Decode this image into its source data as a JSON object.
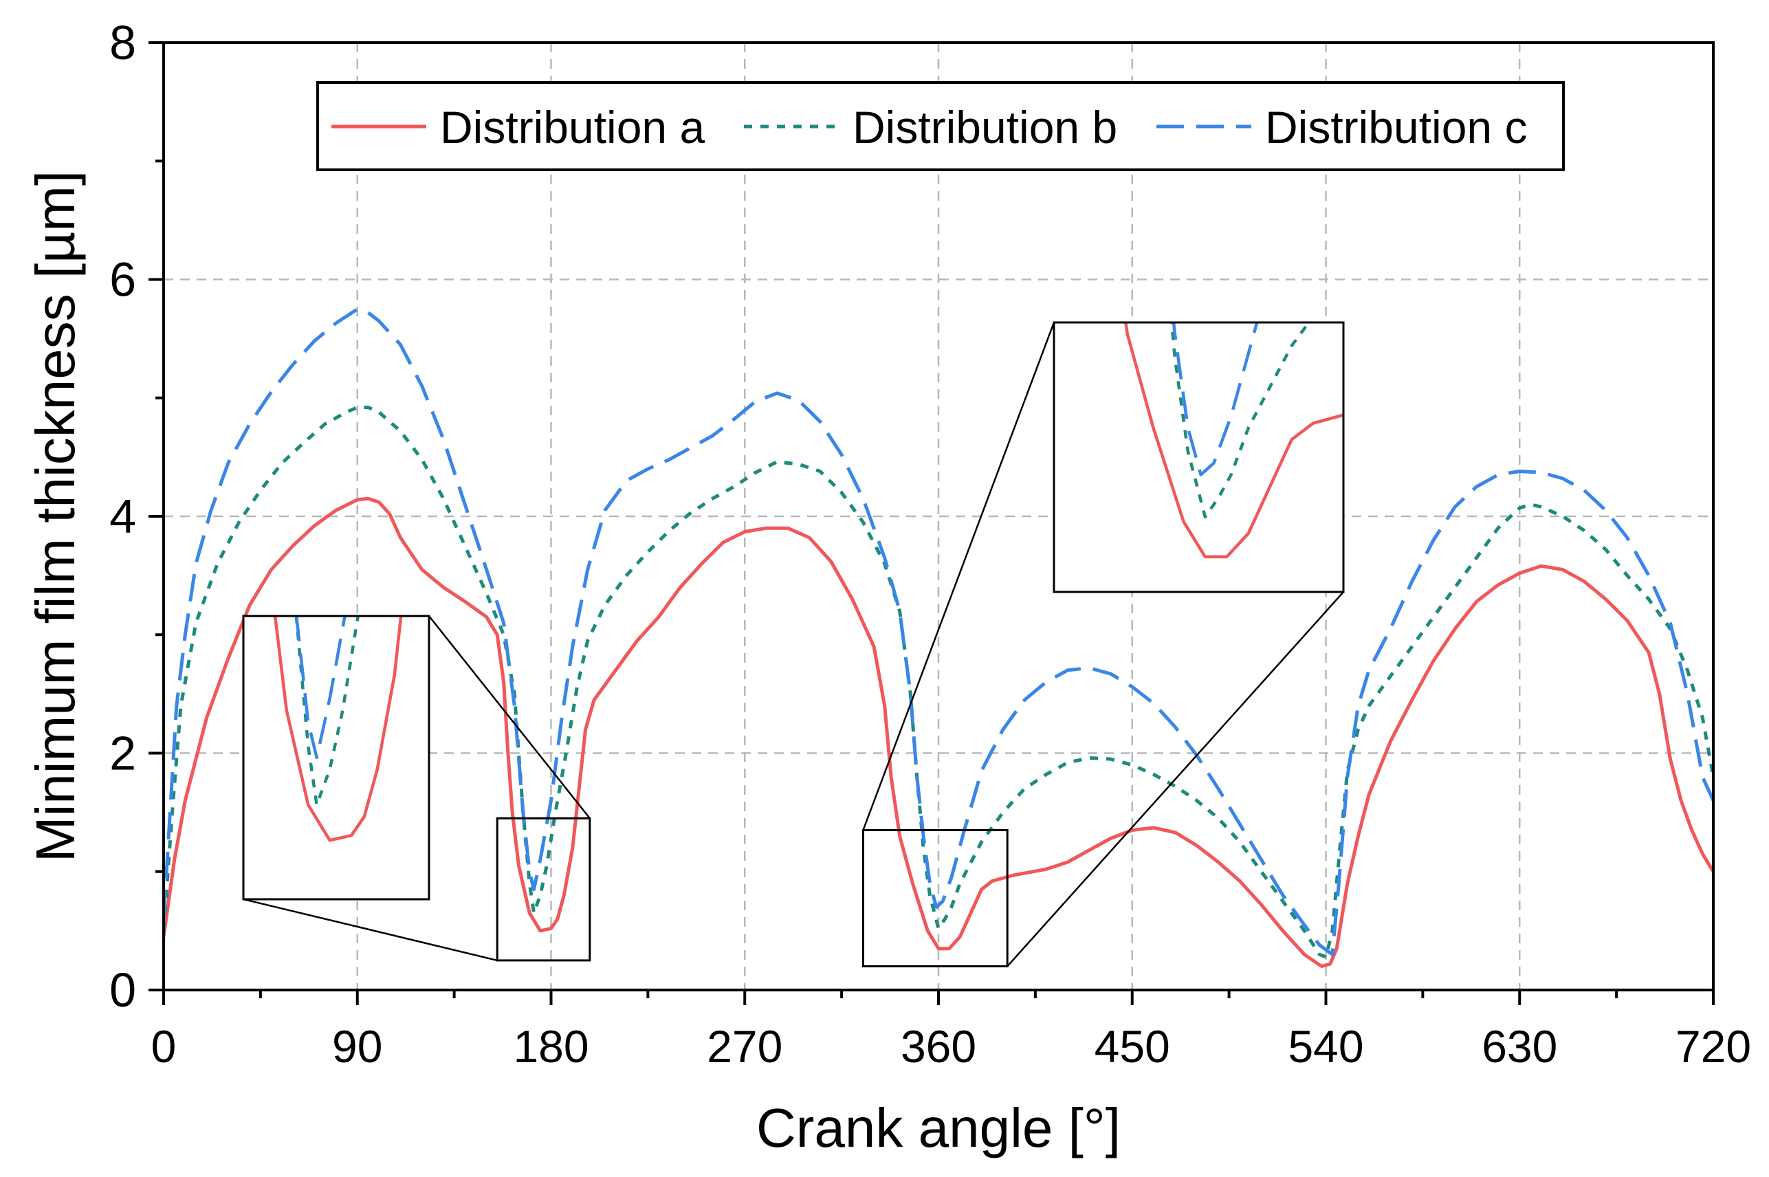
{
  "chart_data": {
    "type": "line",
    "title": "",
    "xlabel": "Crank angle [°]",
    "ylabel": "Minimum film thickness [µm]",
    "xlim": [
      0,
      720
    ],
    "ylim": [
      0,
      8
    ],
    "xticks": [
      0,
      90,
      180,
      270,
      360,
      450,
      540,
      630,
      720
    ],
    "yticks": [
      0,
      2,
      4,
      6,
      8
    ],
    "x_minor_step": 45,
    "y_minor_step": 1,
    "grid": true,
    "legend_position": "top-center",
    "series": [
      {
        "name": "Distribution a",
        "color": "#f0585a",
        "dash": "solid",
        "points": [
          [
            0,
            0.45
          ],
          [
            5,
            1.1
          ],
          [
            10,
            1.6
          ],
          [
            20,
            2.3
          ],
          [
            30,
            2.8
          ],
          [
            40,
            3.25
          ],
          [
            50,
            3.55
          ],
          [
            60,
            3.75
          ],
          [
            70,
            3.92
          ],
          [
            80,
            4.05
          ],
          [
            90,
            4.14
          ],
          [
            95,
            4.15
          ],
          [
            100,
            4.12
          ],
          [
            105,
            4.02
          ],
          [
            110,
            3.82
          ],
          [
            120,
            3.55
          ],
          [
            130,
            3.4
          ],
          [
            140,
            3.28
          ],
          [
            150,
            3.15
          ],
          [
            155,
            3.0
          ],
          [
            158,
            2.6
          ],
          [
            160,
            2.0
          ],
          [
            162,
            1.5
          ],
          [
            165,
            1.05
          ],
          [
            170,
            0.65
          ],
          [
            175,
            0.5
          ],
          [
            180,
            0.52
          ],
          [
            183,
            0.6
          ],
          [
            186,
            0.8
          ],
          [
            190,
            1.2
          ],
          [
            193,
            1.7
          ],
          [
            196,
            2.2
          ],
          [
            200,
            2.45
          ],
          [
            210,
            2.7
          ],
          [
            220,
            2.95
          ],
          [
            230,
            3.15
          ],
          [
            240,
            3.4
          ],
          [
            250,
            3.6
          ],
          [
            260,
            3.78
          ],
          [
            270,
            3.87
          ],
          [
            280,
            3.9
          ],
          [
            290,
            3.9
          ],
          [
            300,
            3.82
          ],
          [
            310,
            3.62
          ],
          [
            320,
            3.3
          ],
          [
            330,
            2.9
          ],
          [
            335,
            2.4
          ],
          [
            338,
            1.8
          ],
          [
            342,
            1.3
          ],
          [
            348,
            0.9
          ],
          [
            355,
            0.5
          ],
          [
            360,
            0.35
          ],
          [
            365,
            0.35
          ],
          [
            370,
            0.45
          ],
          [
            375,
            0.65
          ],
          [
            380,
            0.85
          ],
          [
            385,
            0.92
          ],
          [
            395,
            0.97
          ],
          [
            410,
            1.02
          ],
          [
            420,
            1.08
          ],
          [
            430,
            1.18
          ],
          [
            440,
            1.28
          ],
          [
            450,
            1.35
          ],
          [
            460,
            1.37
          ],
          [
            470,
            1.33
          ],
          [
            480,
            1.22
          ],
          [
            490,
            1.08
          ],
          [
            500,
            0.92
          ],
          [
            510,
            0.72
          ],
          [
            520,
            0.5
          ],
          [
            530,
            0.3
          ],
          [
            538,
            0.2
          ],
          [
            542,
            0.22
          ],
          [
            545,
            0.35
          ],
          [
            550,
            0.9
          ],
          [
            555,
            1.3
          ],
          [
            560,
            1.65
          ],
          [
            570,
            2.1
          ],
          [
            580,
            2.45
          ],
          [
            590,
            2.78
          ],
          [
            600,
            3.05
          ],
          [
            610,
            3.28
          ],
          [
            620,
            3.42
          ],
          [
            630,
            3.52
          ],
          [
            640,
            3.58
          ],
          [
            650,
            3.55
          ],
          [
            660,
            3.45
          ],
          [
            670,
            3.3
          ],
          [
            680,
            3.12
          ],
          [
            690,
            2.85
          ],
          [
            695,
            2.5
          ],
          [
            700,
            1.95
          ],
          [
            705,
            1.6
          ],
          [
            710,
            1.35
          ],
          [
            715,
            1.15
          ],
          [
            720,
            1.0
          ]
        ]
      },
      {
        "name": "Distribution b",
        "color": "#1e8a7d",
        "dash": "short-dash",
        "points": [
          [
            0,
            0.5
          ],
          [
            4,
            1.5
          ],
          [
            8,
            2.4
          ],
          [
            15,
            3.1
          ],
          [
            25,
            3.6
          ],
          [
            35,
            3.95
          ],
          [
            45,
            4.22
          ],
          [
            55,
            4.45
          ],
          [
            65,
            4.62
          ],
          [
            75,
            4.78
          ],
          [
            85,
            4.88
          ],
          [
            90,
            4.92
          ],
          [
            95,
            4.92
          ],
          [
            100,
            4.88
          ],
          [
            110,
            4.72
          ],
          [
            120,
            4.48
          ],
          [
            130,
            4.15
          ],
          [
            140,
            3.75
          ],
          [
            150,
            3.35
          ],
          [
            158,
            3.0
          ],
          [
            163,
            2.5
          ],
          [
            167,
            1.5
          ],
          [
            170,
            0.9
          ],
          [
            172,
            0.65
          ],
          [
            175,
            0.8
          ],
          [
            178,
            1.05
          ],
          [
            182,
            1.5
          ],
          [
            187,
            2.0
          ],
          [
            192,
            2.55
          ],
          [
            197,
            2.95
          ],
          [
            205,
            3.25
          ],
          [
            215,
            3.5
          ],
          [
            225,
            3.7
          ],
          [
            235,
            3.88
          ],
          [
            245,
            4.03
          ],
          [
            255,
            4.15
          ],
          [
            265,
            4.25
          ],
          [
            275,
            4.37
          ],
          [
            285,
            4.46
          ],
          [
            295,
            4.44
          ],
          [
            305,
            4.38
          ],
          [
            315,
            4.2
          ],
          [
            325,
            3.95
          ],
          [
            335,
            3.6
          ],
          [
            342,
            3.2
          ],
          [
            347,
            2.5
          ],
          [
            350,
            1.8
          ],
          [
            353,
            1.2
          ],
          [
            356,
            0.8
          ],
          [
            360,
            0.52
          ],
          [
            363,
            0.6
          ],
          [
            366,
            0.7
          ],
          [
            370,
            0.9
          ],
          [
            380,
            1.25
          ],
          [
            390,
            1.5
          ],
          [
            400,
            1.7
          ],
          [
            410,
            1.82
          ],
          [
            420,
            1.92
          ],
          [
            430,
            1.96
          ],
          [
            440,
            1.95
          ],
          [
            450,
            1.9
          ],
          [
            460,
            1.82
          ],
          [
            470,
            1.72
          ],
          [
            480,
            1.6
          ],
          [
            490,
            1.45
          ],
          [
            500,
            1.25
          ],
          [
            510,
            1.0
          ],
          [
            520,
            0.75
          ],
          [
            530,
            0.5
          ],
          [
            537,
            0.3
          ],
          [
            540,
            0.28
          ],
          [
            543,
            0.5
          ],
          [
            546,
            1.1
          ],
          [
            550,
            1.85
          ],
          [
            555,
            2.2
          ],
          [
            560,
            2.4
          ],
          [
            570,
            2.65
          ],
          [
            580,
            2.9
          ],
          [
            590,
            3.15
          ],
          [
            600,
            3.4
          ],
          [
            610,
            3.65
          ],
          [
            620,
            3.9
          ],
          [
            630,
            4.07
          ],
          [
            635,
            4.1
          ],
          [
            640,
            4.08
          ],
          [
            650,
            4.0
          ],
          [
            660,
            3.88
          ],
          [
            670,
            3.72
          ],
          [
            680,
            3.5
          ],
          [
            690,
            3.3
          ],
          [
            700,
            3.05
          ],
          [
            708,
            2.7
          ],
          [
            715,
            2.3
          ],
          [
            720,
            1.8
          ]
        ]
      },
      {
        "name": "Distribution c",
        "color": "#3a86e8",
        "dash": "long-dash",
        "points": [
          [
            0,
            0.6
          ],
          [
            3,
            1.5
          ],
          [
            6,
            2.4
          ],
          [
            10,
            3.0
          ],
          [
            15,
            3.6
          ],
          [
            22,
            4.05
          ],
          [
            30,
            4.45
          ],
          [
            40,
            4.78
          ],
          [
            50,
            5.05
          ],
          [
            60,
            5.28
          ],
          [
            70,
            5.48
          ],
          [
            80,
            5.63
          ],
          [
            90,
            5.75
          ],
          [
            95,
            5.72
          ],
          [
            100,
            5.65
          ],
          [
            110,
            5.45
          ],
          [
            120,
            5.1
          ],
          [
            130,
            4.65
          ],
          [
            140,
            4.1
          ],
          [
            150,
            3.55
          ],
          [
            158,
            3.1
          ],
          [
            163,
            2.4
          ],
          [
            167,
            1.5
          ],
          [
            170,
            1.0
          ],
          [
            172,
            0.85
          ],
          [
            175,
            1.1
          ],
          [
            180,
            1.6
          ],
          [
            185,
            2.3
          ],
          [
            190,
            2.9
          ],
          [
            197,
            3.55
          ],
          [
            205,
            4.05
          ],
          [
            215,
            4.3
          ],
          [
            225,
            4.4
          ],
          [
            235,
            4.48
          ],
          [
            245,
            4.58
          ],
          [
            255,
            4.68
          ],
          [
            265,
            4.82
          ],
          [
            275,
            4.97
          ],
          [
            285,
            5.04
          ],
          [
            295,
            4.98
          ],
          [
            305,
            4.8
          ],
          [
            315,
            4.52
          ],
          [
            325,
            4.15
          ],
          [
            335,
            3.65
          ],
          [
            342,
            3.2
          ],
          [
            347,
            2.5
          ],
          [
            350,
            1.8
          ],
          [
            353,
            1.3
          ],
          [
            356,
            0.9
          ],
          [
            359,
            0.7
          ],
          [
            362,
            0.75
          ],
          [
            366,
            0.95
          ],
          [
            372,
            1.35
          ],
          [
            380,
            1.85
          ],
          [
            390,
            2.2
          ],
          [
            400,
            2.45
          ],
          [
            410,
            2.6
          ],
          [
            420,
            2.7
          ],
          [
            430,
            2.72
          ],
          [
            440,
            2.67
          ],
          [
            450,
            2.56
          ],
          [
            460,
            2.42
          ],
          [
            470,
            2.22
          ],
          [
            480,
            1.98
          ],
          [
            490,
            1.7
          ],
          [
            500,
            1.4
          ],
          [
            510,
            1.1
          ],
          [
            520,
            0.8
          ],
          [
            530,
            0.55
          ],
          [
            537,
            0.38
          ],
          [
            543,
            0.3
          ],
          [
            546,
            0.9
          ],
          [
            550,
            1.8
          ],
          [
            555,
            2.4
          ],
          [
            560,
            2.7
          ],
          [
            570,
            3.05
          ],
          [
            580,
            3.45
          ],
          [
            590,
            3.8
          ],
          [
            600,
            4.08
          ],
          [
            610,
            4.25
          ],
          [
            620,
            4.35
          ],
          [
            630,
            4.38
          ],
          [
            640,
            4.37
          ],
          [
            650,
            4.32
          ],
          [
            660,
            4.22
          ],
          [
            670,
            4.05
          ],
          [
            680,
            3.82
          ],
          [
            690,
            3.5
          ],
          [
            700,
            3.1
          ],
          [
            708,
            2.5
          ],
          [
            715,
            1.8
          ],
          [
            720,
            1.6
          ]
        ]
      }
    ],
    "insets": [
      {
        "name": "zoom-180",
        "source_x": [
          155,
          198
        ],
        "source_y": [
          0.25,
          1.45
        ]
      },
      {
        "name": "zoom-360",
        "source_x": [
          325,
          392
        ],
        "source_y": [
          0.2,
          1.35
        ]
      }
    ]
  }
}
